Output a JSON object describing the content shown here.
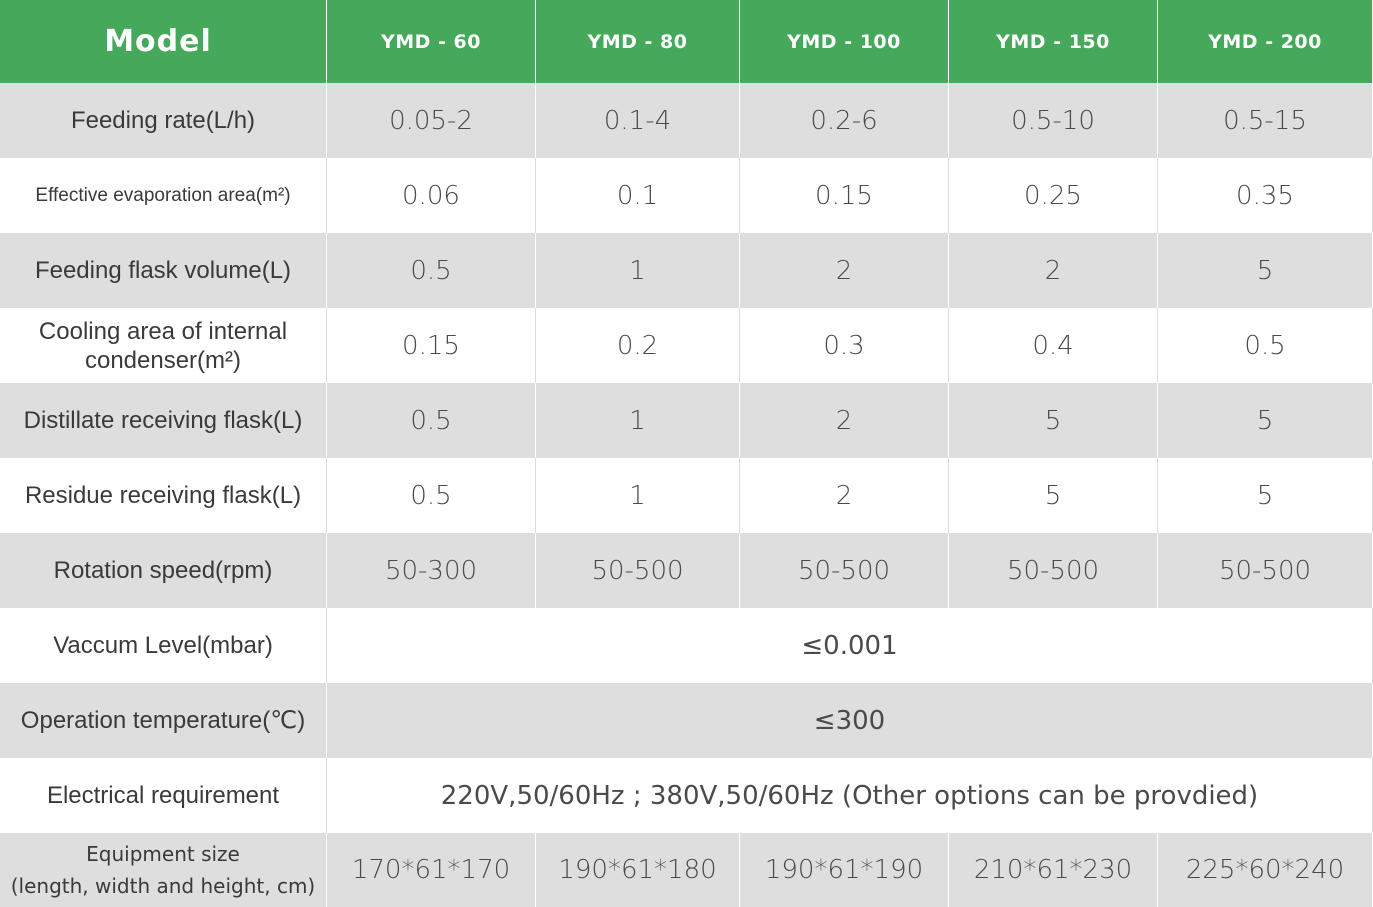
{
  "header": {
    "model_label": "Model",
    "models": [
      "YMD - 60",
      "YMD - 80",
      "YMD - 100",
      "YMD - 150",
      "YMD - 200"
    ]
  },
  "rows": [
    {
      "label": "Feeding rate(L/h)",
      "values": [
        "0.05-2",
        "0.1-4",
        "0.2-6",
        "0.5-10",
        "0.5-15"
      ]
    },
    {
      "label": "Effective evaporation area(m²)",
      "values": [
        "0.06",
        "0.1",
        "0.15",
        "0.25",
        "0.35"
      ]
    },
    {
      "label": "Feeding flask volume(L)",
      "values": [
        "0.5",
        "1",
        "2",
        "2",
        "5"
      ]
    },
    {
      "label_line1": "Cooling area of internal",
      "label_line2": "condenser(m²)",
      "values": [
        "0.15",
        "0.2",
        "0.3",
        "0.4",
        "0.5"
      ]
    },
    {
      "label": "Distillate receiving flask(L)",
      "values": [
        "0.5",
        "1",
        "2",
        "5",
        "5"
      ]
    },
    {
      "label": "Residue receiving flask(L)",
      "values": [
        "0.5",
        "1",
        "2",
        "5",
        "5"
      ]
    },
    {
      "label": "Rotation speed(rpm)",
      "values": [
        "50-300",
        "50-500",
        "50-500",
        "50-500",
        "50-500"
      ]
    },
    {
      "label": "Vaccum Level(mbar)",
      "value": "≤0.001"
    },
    {
      "label": "Operation temperature(℃)",
      "value": "≤300"
    },
    {
      "label": "Electrical requirement",
      "value": "220V,50/60Hz ; 380V,50/60Hz (Other options can be provdied)"
    },
    {
      "label_line1": "Equipment size",
      "label_line2": "(length, width and height, cm)",
      "values": [
        "170*61*170",
        "190*61*180",
        "190*61*190",
        "210*61*230",
        "225*60*240"
      ]
    }
  ],
  "colors": {
    "header_green": "#45a85a",
    "row_gray": "#dedede",
    "row_white": "#ffffff"
  }
}
